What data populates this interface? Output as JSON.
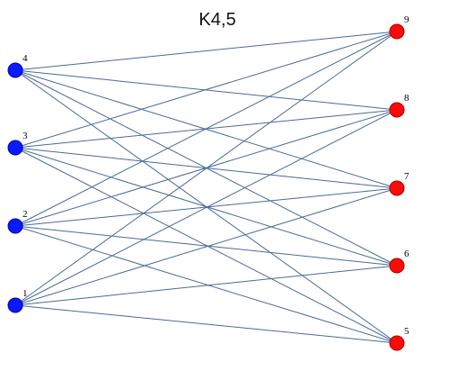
{
  "diagram": {
    "title": "K4,5",
    "left_vertices": [
      {
        "id": "4",
        "label": "4"
      },
      {
        "id": "3",
        "label": "3"
      },
      {
        "id": "2",
        "label": "2"
      },
      {
        "id": "1",
        "label": "1"
      }
    ],
    "right_vertices": [
      {
        "id": "9",
        "label": "9"
      },
      {
        "id": "8",
        "label": "8"
      },
      {
        "id": "7",
        "label": "7"
      },
      {
        "id": "6",
        "label": "6"
      },
      {
        "id": "5",
        "label": "5"
      }
    ],
    "edges": "complete-bipartite",
    "colors": {
      "left": "#0a1aff",
      "left_stroke": "#0000aa",
      "right": "#ff0a0a",
      "right_stroke": "#aa0000",
      "edge": "#4a6a9a"
    }
  }
}
